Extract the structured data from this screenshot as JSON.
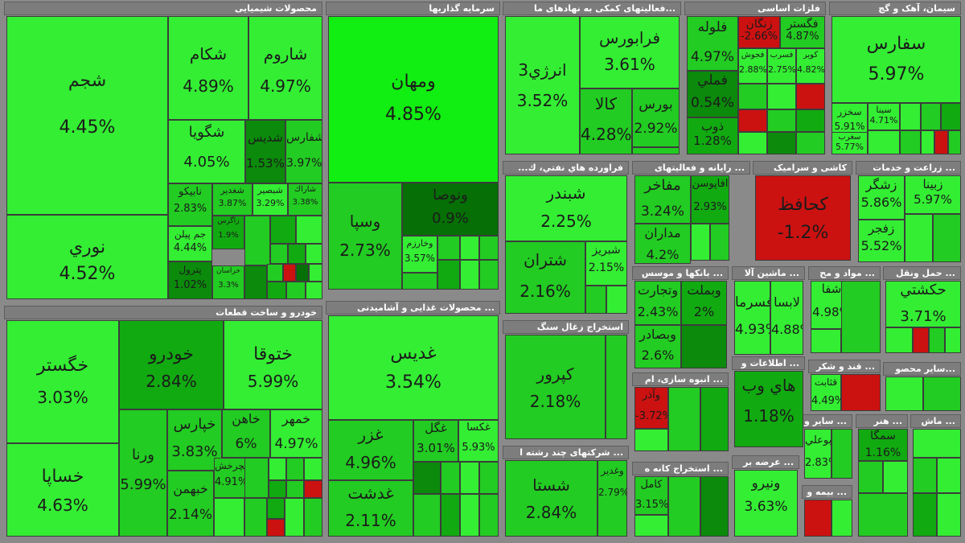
{
  "colors": {
    "g1": "#33ee33",
    "g2": "#22cc22",
    "g3": "#11aa11",
    "g4": "#0b8a0b",
    "g5": "#066f06",
    "red": "#cc1111",
    "header": "#7d7d7d"
  },
  "sectors": [
    {
      "id": "chem",
      "name": "محصولات شیمیایی"
    },
    {
      "id": "inv",
      "name": "سرمایه گذاریها"
    },
    {
      "id": "fin",
      "name": "...فعالیتهای کمکی به نهادهای ما"
    },
    {
      "id": "metal",
      "name": "فلزات اساسی"
    },
    {
      "id": "cement",
      "name": "سیمان، آهک و گچ"
    },
    {
      "id": "auto",
      "name": "خودرو و ساخت قطعات"
    },
    {
      "id": "food",
      "name": "... محصولات غذایی و آشامیدنی"
    },
    {
      "id": "oil",
      "name": "فراورده هاي نفتي، ك..."
    },
    {
      "id": "it",
      "name": "... رایانه و فعالیتهای"
    },
    {
      "id": "tile",
      "name": "کاشی و سرامیک"
    },
    {
      "id": "agri",
      "name": "... زراعت و خدمات"
    },
    {
      "id": "banks",
      "name": "... بانکها و موسس"
    },
    {
      "id": "mach",
      "name": "... ماشین آلا"
    },
    {
      "id": "mat",
      "name": "... مواد و مح"
    },
    {
      "id": "trans",
      "name": "... حمل ونقل"
    },
    {
      "id": "coal",
      "name": "استخراج زغال سنگ"
    },
    {
      "id": "mass",
      "name": "... انبوه سازی، ام"
    },
    {
      "id": "telecom",
      "name": "... اطلاعات و"
    },
    {
      "id": "sugar",
      "name": "... قند و شکر"
    },
    {
      "id": "othermining",
      "name": "...سایر محصو"
    },
    {
      "id": "multi",
      "name": "... شرکتهای چند رشته ا"
    },
    {
      "id": "ore",
      "name": "... استخراج کانه ه"
    },
    {
      "id": "offer",
      "name": "... عرضه بر"
    },
    {
      "id": "misc1",
      "name": "... سایر و"
    },
    {
      "id": "art",
      "name": "... هنر"
    },
    {
      "id": "mach2",
      "name": "... ماش"
    },
    {
      "id": "ins",
      "name": "... بیمه و"
    }
  ],
  "tiles": [
    {
      "sym": "شجم",
      "pct": "4.45%"
    },
    {
      "sym": "نوري",
      "pct": "4.52%"
    },
    {
      "sym": "شكام",
      "pct": "4.89%"
    },
    {
      "sym": "شاروم",
      "pct": "4.97%"
    },
    {
      "sym": "شگويا",
      "pct": "4.05%"
    },
    {
      "sym": "شديس",
      "pct": "1.53%"
    },
    {
      "sym": "شفارس",
      "pct": "3.97%"
    },
    {
      "sym": "نابيكو",
      "pct": "2.83%"
    },
    {
      "sym": "شغدير",
      "pct": "3.87%"
    },
    {
      "sym": "شبصير",
      "pct": "3.29%"
    },
    {
      "sym": "شاراك",
      "pct": "3.38%"
    },
    {
      "sym": "جم پيلن",
      "pct": "4.44%"
    },
    {
      "sym": "پترول",
      "pct": "1.02%"
    },
    {
      "sym": "زاگرس",
      "pct": "1.9%"
    },
    {
      "sym": "خراسان",
      "pct": "3.3%"
    },
    {
      "sym": "ومهان",
      "pct": "4.85%"
    },
    {
      "sym": "وسپا",
      "pct": "2.73%"
    },
    {
      "sym": "ونوصا",
      "pct": "0.9%"
    },
    {
      "sym": "وخارزم",
      "pct": "3.57%"
    },
    {
      "sym": "انرژي3",
      "pct": "3.52%"
    },
    {
      "sym": "فرابورس",
      "pct": "3.61%"
    },
    {
      "sym": "كالا",
      "pct": "4.28%"
    },
    {
      "sym": "بورس",
      "pct": "2.92%"
    },
    {
      "sym": "فلوله",
      "pct": "4.97%"
    },
    {
      "sym": "فگستر",
      "pct": "4.87%"
    },
    {
      "sym": "زنگان",
      "pct": "-2.66%"
    },
    {
      "sym": "فملي",
      "pct": "0.54%"
    },
    {
      "sym": "ذوب",
      "pct": "1.28%"
    },
    {
      "sym": "فجوش",
      "pct": "2.88%"
    },
    {
      "sym": "فسرب",
      "pct": "2.75%"
    },
    {
      "sym": "كوير",
      "pct": "4.82%"
    },
    {
      "sym": "سفارس",
      "pct": "5.97%"
    },
    {
      "sym": "سخزر",
      "pct": "5.91%"
    },
    {
      "sym": "سينا",
      "pct": "4.71%"
    },
    {
      "sym": "سغرب",
      "pct": "5.77%"
    },
    {
      "sym": "خگستر",
      "pct": "3.03%"
    },
    {
      "sym": "خساپا",
      "pct": "4.63%"
    },
    {
      "sym": "خودرو",
      "pct": "2.84%"
    },
    {
      "sym": "ختوقا",
      "pct": "5.99%"
    },
    {
      "sym": "ورنا",
      "pct": "5.99%"
    },
    {
      "sym": "خپارس",
      "pct": "3.83%"
    },
    {
      "sym": "خاهن",
      "pct": "6%"
    },
    {
      "sym": "خمهر",
      "pct": "4.97%"
    },
    {
      "sym": "خچرخش",
      "pct": "4.91%"
    },
    {
      "sym": "خبهمن",
      "pct": "2.14%"
    },
    {
      "sym": "غديس",
      "pct": "3.54%"
    },
    {
      "sym": "غزر",
      "pct": "4.96%"
    },
    {
      "sym": "غدشت",
      "pct": "2.11%"
    },
    {
      "sym": "غگل",
      "pct": "3.01%"
    },
    {
      "sym": "غكسا",
      "pct": "5.93%"
    },
    {
      "sym": "شبندر",
      "pct": "2.25%"
    },
    {
      "sym": "شتران",
      "pct": "2.16%"
    },
    {
      "sym": "شبريز",
      "pct": "2.15%"
    },
    {
      "sym": "مفاخر",
      "pct": "3.24%"
    },
    {
      "sym": "افاپوسن",
      "pct": "2.93%"
    },
    {
      "sym": "مداران",
      "pct": "4.2%"
    },
    {
      "sym": "كحافظ",
      "pct": "-1.2%"
    },
    {
      "sym": "زشگر",
      "pct": "5.86%"
    },
    {
      "sym": "زبينا",
      "pct": "5.97%"
    },
    {
      "sym": "زفجر",
      "pct": "5.52%"
    },
    {
      "sym": "وتجارت",
      "pct": "2.43%"
    },
    {
      "sym": "وبملت",
      "pct": "2%"
    },
    {
      "sym": "وبصادر",
      "pct": "2.6%"
    },
    {
      "sym": "فسرما",
      "pct": "4.93%"
    },
    {
      "sym": "لابسا",
      "pct": "4.88%"
    },
    {
      "sym": "شفا",
      "pct": "4.98%"
    },
    {
      "sym": "حكشتي",
      "pct": "3.71%"
    },
    {
      "sym": "كپرور",
      "pct": "2.18%"
    },
    {
      "sym": "وآذر",
      "pct": "-3.72%"
    },
    {
      "sym": "هاي وب",
      "pct": "1.18%"
    },
    {
      "sym": "قثابت",
      "pct": "4.49%"
    },
    {
      "sym": "وبوعلي",
      "pct": "2.83%"
    },
    {
      "sym": "سمگا",
      "pct": "1.16%"
    },
    {
      "sym": "شستا",
      "pct": "2.84%"
    },
    {
      "sym": "وغدير",
      "pct": "2.79%"
    },
    {
      "sym": "كامل",
      "pct": "3.15%"
    },
    {
      "sym": "ونيرو",
      "pct": "3.63%"
    }
  ]
}
